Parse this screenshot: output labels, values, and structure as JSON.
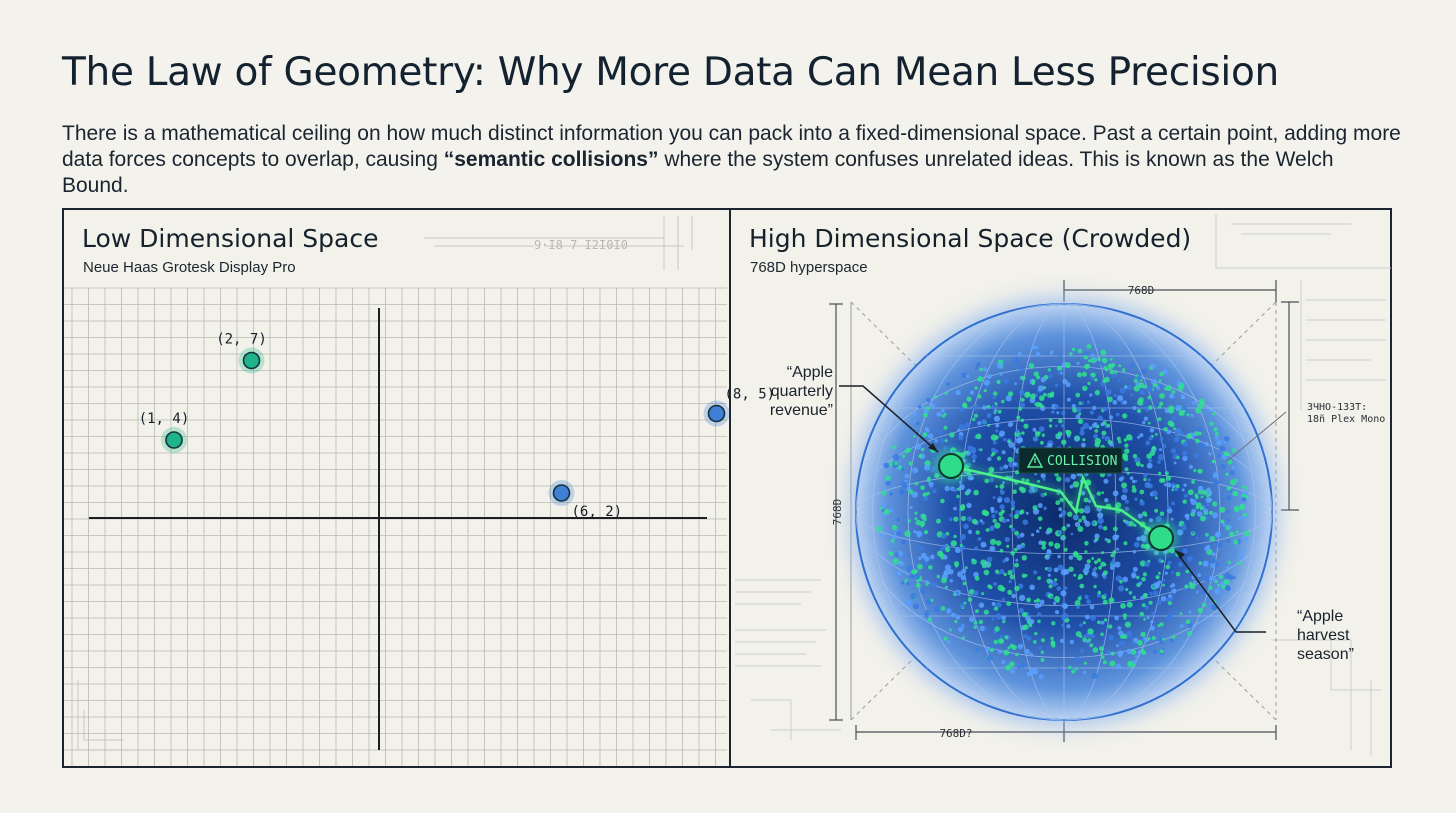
{
  "header": {
    "title": "The Law of Geometry: Why More Data Can Mean Less Precision",
    "lead_before": "There is a mathematical ceiling on how much distinct information you can pack into a fixed-dimensional space. Past a certain point, adding more data forces concepts to overlap, causing ",
    "lead_bold": "“semantic collisions”",
    "lead_after": " where the system confuses unrelated ideas. This is known as the Welch Bound."
  },
  "left_panel": {
    "title": "Low Dimensional Space",
    "subtitle": "Neue Haas Grotesk Display Pro",
    "decor_text": "9·I8 7 I2I0I0",
    "points": [
      {
        "x": 1,
        "y": 4,
        "label": "(1, 4)",
        "color": "#1fb38a"
      },
      {
        "x": 2,
        "y": 7,
        "label": "(2, 7)",
        "color": "#1fb38a"
      },
      {
        "x": 8,
        "y": 5,
        "label": "(8, 5)",
        "color": "#3f7fd6"
      },
      {
        "x": 6,
        "y": 2,
        "label": "(6, 2)",
        "color": "#3f7fd6"
      }
    ]
  },
  "right_panel": {
    "title": "High Dimensional Space (Crowded)",
    "subtitle": "768D hyperspace",
    "dim_top": "768D",
    "dim_bottom": "768D?",
    "dim_left": "768D",
    "collision_label": "COLLISION",
    "callout_a": [
      "“Apple",
      "quarterly",
      "revenue”"
    ],
    "callout_b": [
      "“Apple",
      "harvest",
      "season”"
    ],
    "side_note": [
      "ЗЧНО-1ЗЗТ:",
      "18ñ Plex Mono"
    ],
    "colors": {
      "sphere": "#2f6fd0",
      "point_green": "#2fe08f",
      "point_blue": "#2d5fc4",
      "collision_line": "#39e27a"
    }
  }
}
